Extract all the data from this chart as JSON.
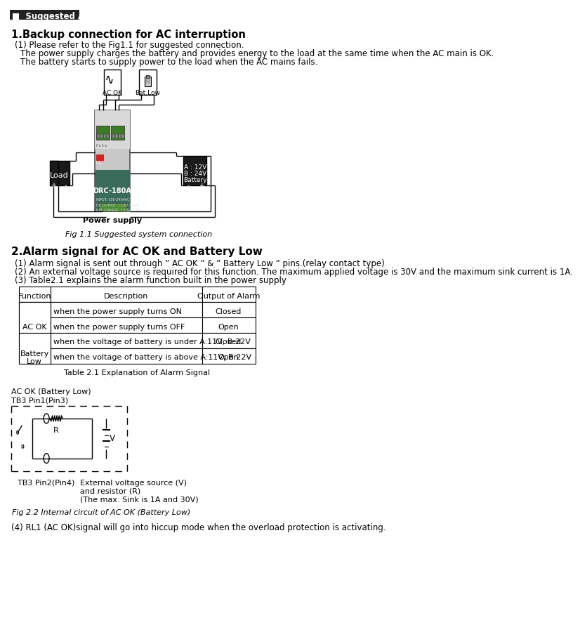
{
  "title_header": "Suggested Application",
  "section1_title": "1.Backup connection for AC interruption",
  "section1_sub1": "(1) Please refer to the Fig1.1 for suggested connection.",
  "section1_sub2": "The power supply charges the battery and provides energy to the load at the same time when the AC main is OK.",
  "section1_sub3": "The battery starts to supply power to the load when the AC mains fails.",
  "fig1_caption": "Fig 1.1 Suggested system connection",
  "section2_title": "2.Alarm signal for AC OK and Battery Low",
  "section2_p1": "(1) Alarm signal is sent out through ” AC OK ” & ” Battery Low ” pins.(relay contact type)",
  "section2_p2": "(2) An external voltage source is required for this function. The maximum applied voltage is 30V and the maximum sink current is 1A.",
  "section2_p3": "(3) Table2.1 explains the alarm function built in the power supply",
  "table_caption": "Table 2.1 Explanation of Alarm Signal",
  "table_headers": [
    "Function",
    "Description",
    "Output of Alarm"
  ],
  "table_rows": [
    [
      "AC OK",
      "when the power supply turns ON",
      "Closed"
    ],
    [
      "",
      "when the power supply turns OFF",
      "Open"
    ],
    [
      "Battery\nLow",
      "when the voltage of battery is under A:11V, B:22V",
      "Closed"
    ],
    [
      "",
      "when the voltage of battery is above A:11V, B:22V",
      "Open"
    ]
  ],
  "circuit_label1": "AC OK (Battery Low)",
  "circuit_label2": "TB3 Pin1(Pin3)",
  "circuit_label3": "TB3 Pin2(Pin4)",
  "circuit_label4": "External voltage source (V)",
  "circuit_label5": "and resistor (R)",
  "circuit_label6": "(The max. Sink is 1A and 30V)",
  "fig2_caption": "Fig 2.2 Internal circuit of AC OK (Battery Low)",
  "section2_p4": "(4) RL1 (AC OK)signal will go into hiccup mode when the overload protection is activating.",
  "bg_color": "#ffffff"
}
